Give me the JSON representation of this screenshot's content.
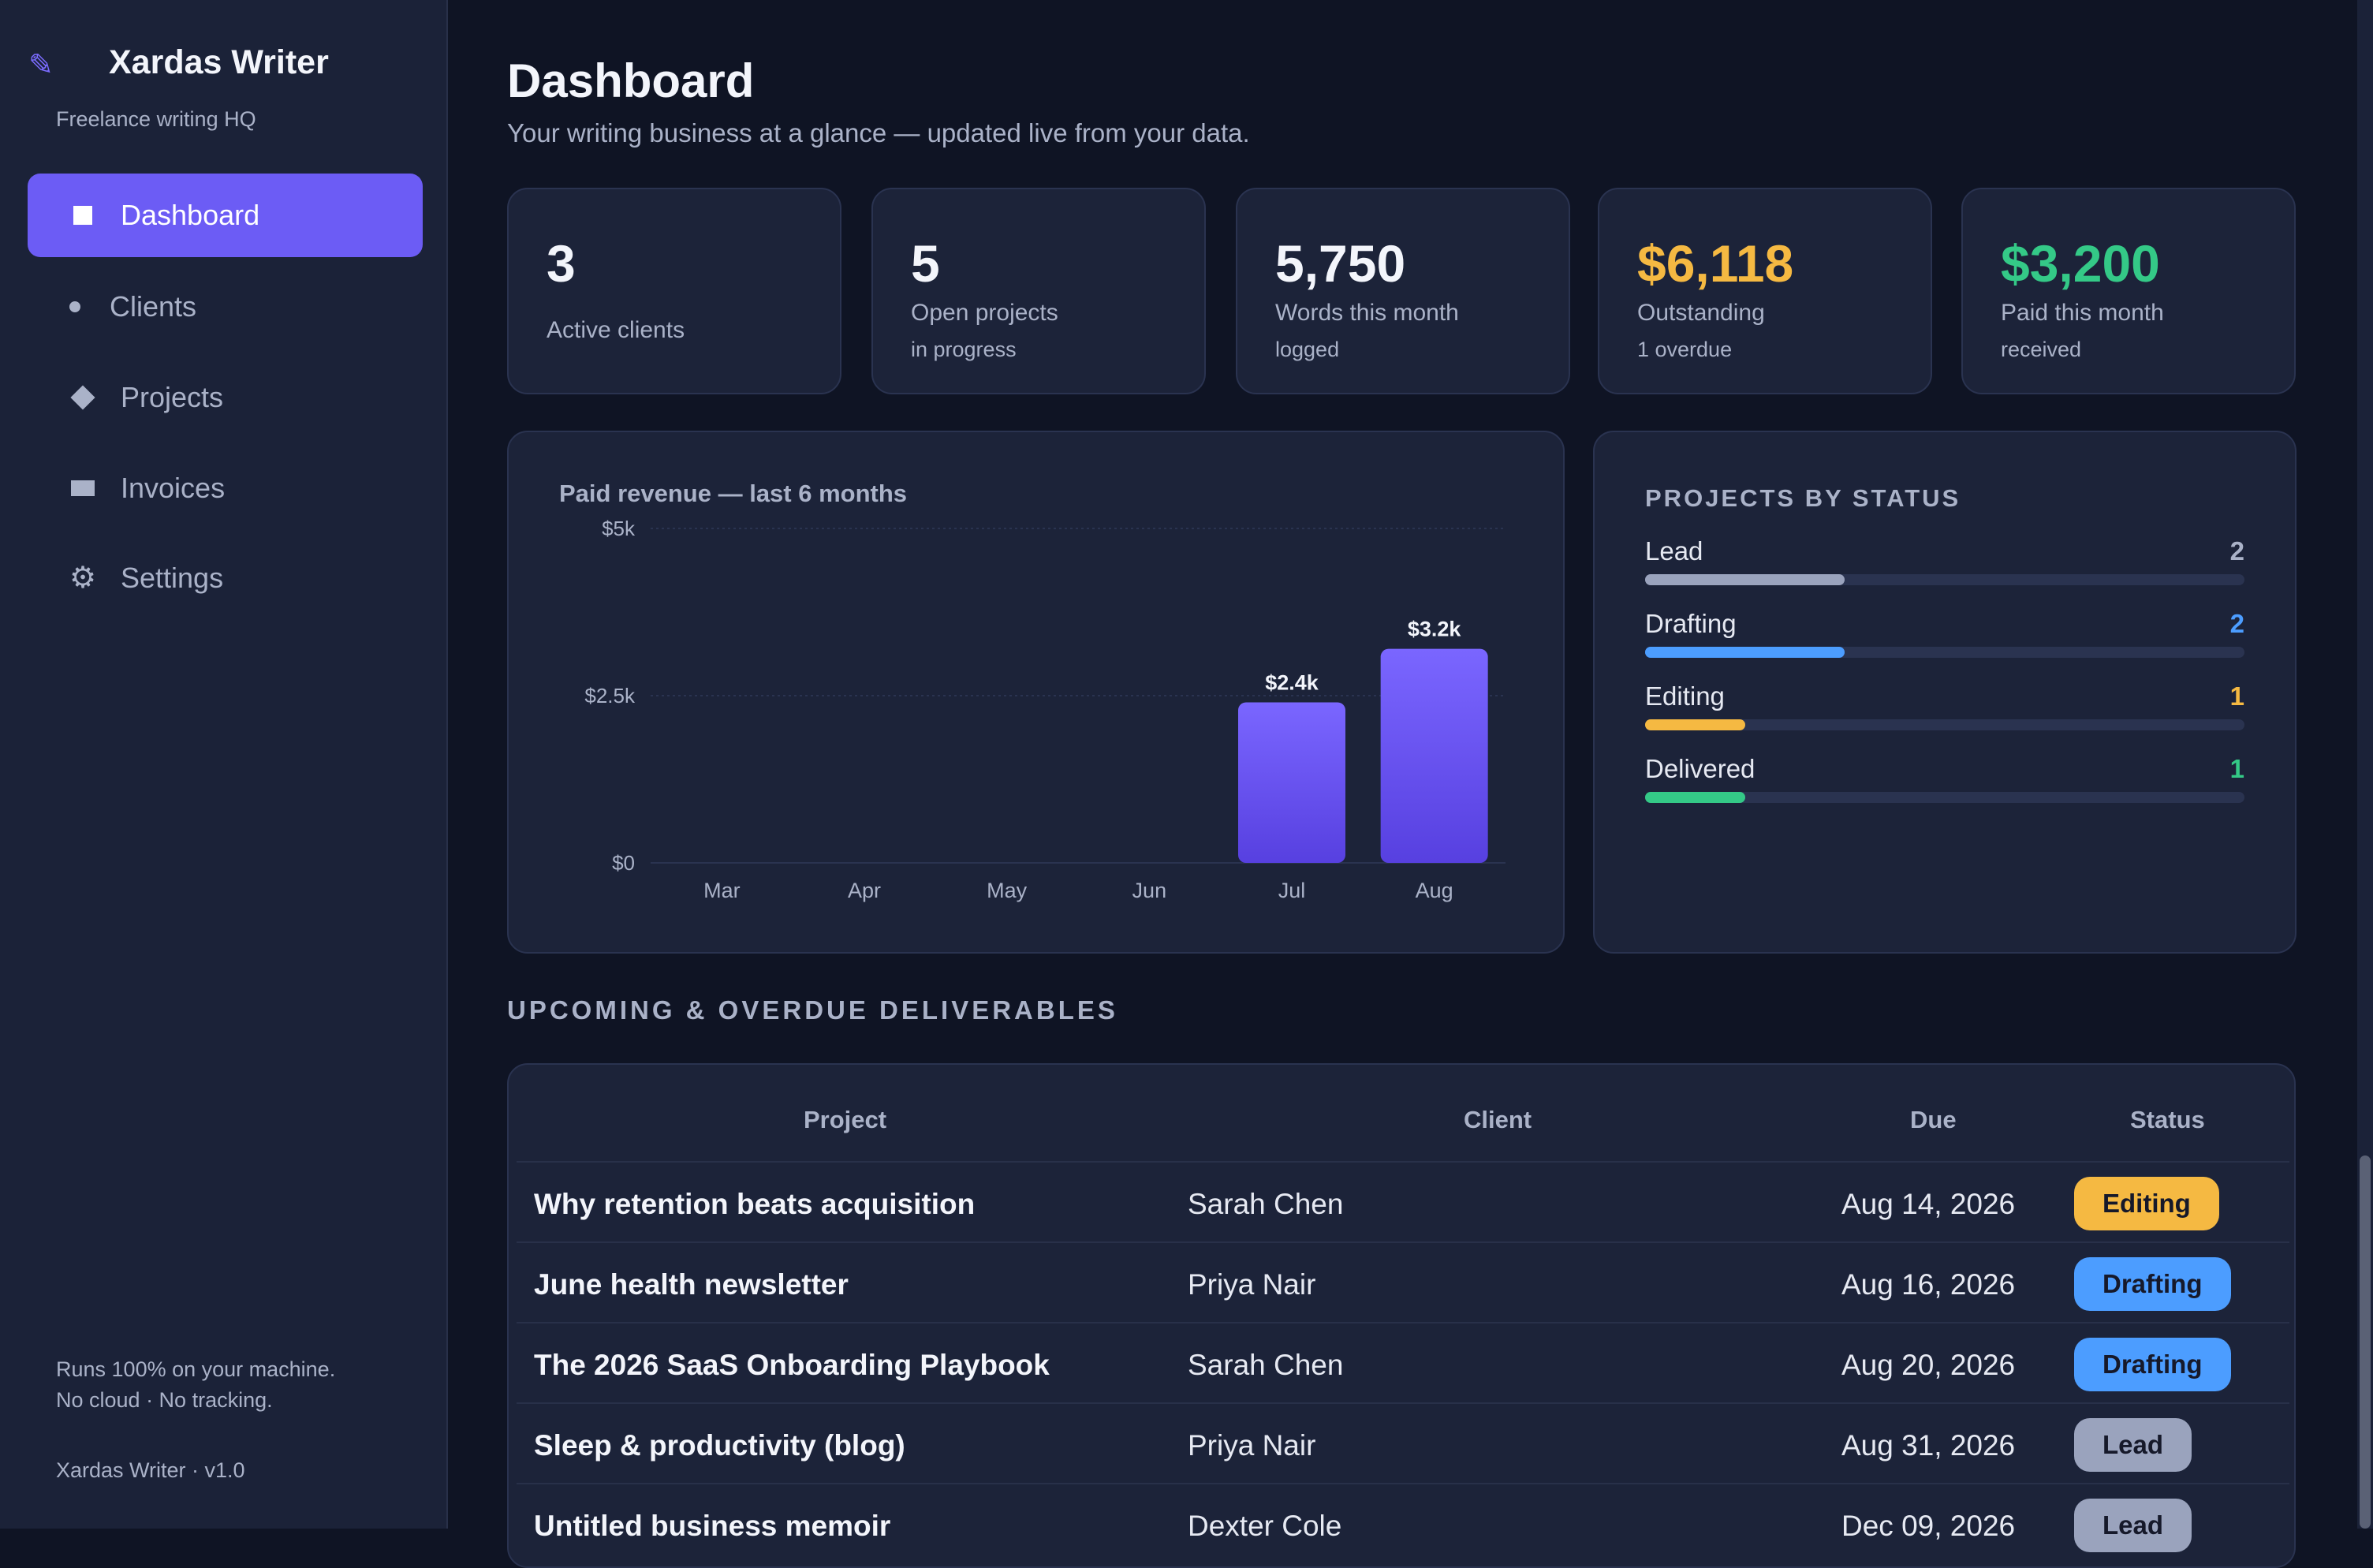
{
  "sidebar": {
    "brand_icon": "pencil-icon",
    "brand_name": "Xardas Writer",
    "brand_sub": "Freelance writing HQ",
    "nav": [
      {
        "label": "Dashboard",
        "icon": "square-icon",
        "active": true
      },
      {
        "label": "Clients",
        "icon": "dot-icon"
      },
      {
        "label": "Projects",
        "icon": "diamond-icon"
      },
      {
        "label": "Invoices",
        "icon": "rectangle-icon"
      },
      {
        "label": "Settings",
        "icon": "gear-icon"
      }
    ],
    "footer_line1": "Runs 100% on your machine.",
    "footer_line2": "No cloud · No tracking.",
    "version": "Xardas Writer · v1.0"
  },
  "header": {
    "title": "Dashboard",
    "subtitle": "Your writing business at a glance — updated live from your data."
  },
  "stats": [
    {
      "value": "3",
      "label": "Active clients",
      "sub": "",
      "color": "#f3f5fb"
    },
    {
      "value": "5",
      "label": "Open projects",
      "sub": "in progress",
      "color": "#f3f5fb"
    },
    {
      "value": "5,750",
      "label": "Words this month",
      "sub": "logged",
      "color": "#f3f5fb"
    },
    {
      "value": "$6,118",
      "label": "Outstanding",
      "sub": "1 overdue",
      "color": "#f5b942"
    },
    {
      "value": "$3,200",
      "label": "Paid this month",
      "sub": "received",
      "color": "#34c987"
    }
  ],
  "chart_data": {
    "type": "bar",
    "title": "Paid revenue — last 6 months",
    "categories": [
      "Mar",
      "Apr",
      "May",
      "Jun",
      "Jul",
      "Aug"
    ],
    "values": [
      0,
      0,
      0,
      0,
      2400,
      3200
    ],
    "value_labels": [
      "",
      "",
      "",
      "",
      "$2.4k",
      "$3.2k"
    ],
    "y_ticks": [
      0,
      2500,
      5000
    ],
    "y_tick_labels": [
      "$0",
      "$2.5k",
      "$5k"
    ],
    "ylim": [
      0,
      5000
    ],
    "bar_color": "#6c5cf5",
    "grid": true
  },
  "projects_by_status": {
    "heading": "PROJECTS BY STATUS",
    "max": 6,
    "items": [
      {
        "label": "Lead",
        "count": 2,
        "color": "#9aa3bd",
        "count_color": "#aab2c8"
      },
      {
        "label": "Drafting",
        "count": 2,
        "color": "#4c9dff",
        "count_color": "#4c9dff"
      },
      {
        "label": "Editing",
        "count": 1,
        "color": "#f5b942",
        "count_color": "#f5b942"
      },
      {
        "label": "Delivered",
        "count": 1,
        "color": "#34c987",
        "count_color": "#34c987"
      }
    ]
  },
  "deliverables": {
    "heading": "UPCOMING & OVERDUE DELIVERABLES",
    "columns": [
      "Project",
      "Client",
      "Due",
      "Status"
    ],
    "rows": [
      {
        "project": "Why retention beats acquisition",
        "client": "Sarah Chen",
        "due": "Aug 14, 2026",
        "status": "Editing",
        "status_color": "#f5b942"
      },
      {
        "project": "June health newsletter",
        "client": "Priya Nair",
        "due": "Aug 16, 2026",
        "status": "Drafting",
        "status_color": "#4c9dff"
      },
      {
        "project": "The 2026 SaaS Onboarding Playbook",
        "client": "Sarah Chen",
        "due": "Aug 20, 2026",
        "status": "Drafting",
        "status_color": "#4c9dff"
      },
      {
        "project": "Sleep & productivity (blog)",
        "client": "Priya Nair",
        "due": "Aug 31, 2026",
        "status": "Lead",
        "status_color": "#9aa3bd"
      },
      {
        "project": "Untitled business memoir",
        "client": "Dexter Cole",
        "due": "Dec 09, 2026",
        "status": "Lead",
        "status_color": "#9aa3bd"
      }
    ]
  }
}
